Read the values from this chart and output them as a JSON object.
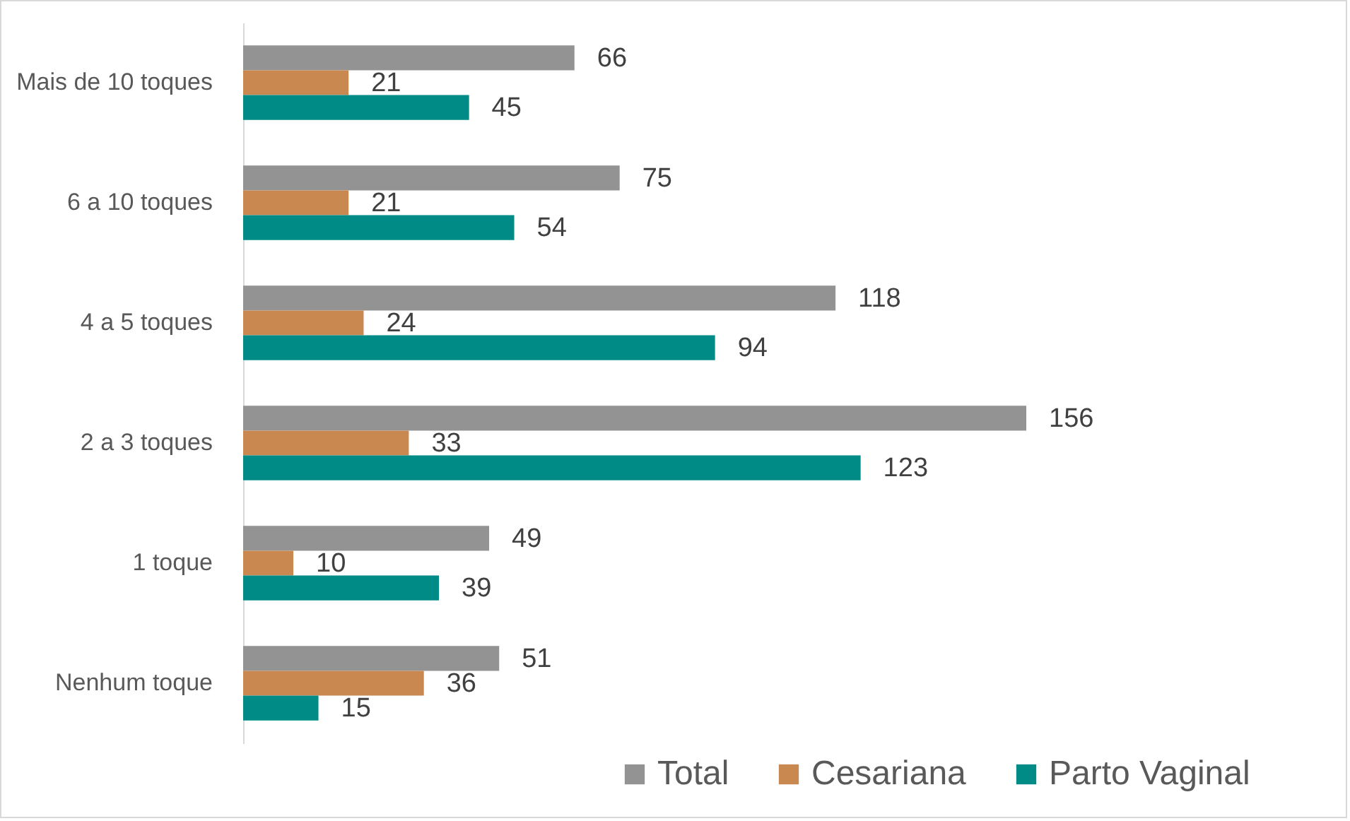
{
  "chart_data": {
    "type": "bar",
    "orientation": "horizontal",
    "categories": [
      "Mais de 10 toques",
      "6 a 10 toques",
      "4 a 5 toques",
      "2 a 3 toques",
      "1 toque",
      "Nenhum toque"
    ],
    "series": [
      {
        "name": "Total",
        "color": "#939393",
        "values": [
          66,
          75,
          118,
          156,
          49,
          51
        ]
      },
      {
        "name": "Cesariana",
        "color": "#c8884f",
        "values": [
          21,
          21,
          24,
          33,
          10,
          36
        ]
      },
      {
        "name": "Parto Vaginal",
        "color": "#008b87",
        "values": [
          45,
          54,
          94,
          123,
          39,
          15
        ]
      }
    ],
    "data_labels": true,
    "legend": "bottom right"
  }
}
